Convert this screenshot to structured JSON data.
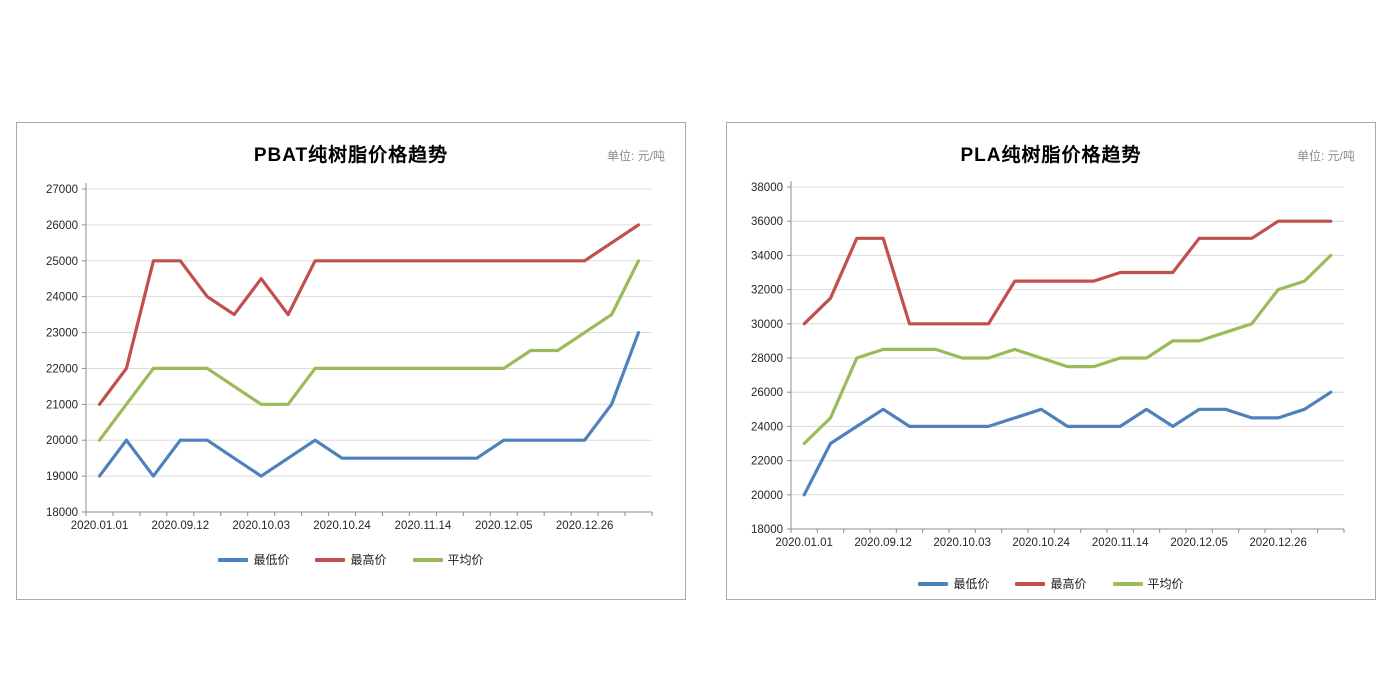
{
  "style": {
    "background": "#FFFFFF",
    "card_border_color": "#ABABAB",
    "axis_color": "#8C8C8C",
    "grid_color": "#DBDBDB",
    "tick_label_color": "#262626",
    "title_color": "#000000",
    "unit_label_color": "#8C8C8C",
    "series_colors": {
      "min": "#4F81BD",
      "max": "#C0504D",
      "avg": "#9BBB59"
    }
  },
  "chart_data": [
    {
      "type": "line",
      "title": "PBAT纯树脂价格趋势",
      "unit_label": "单位: 元/吨",
      "ylim": [
        18000,
        27000
      ],
      "ytick_step": 1000,
      "grid": true,
      "legend_position": "bottom",
      "categories": [
        "2020.01.01",
        "",
        "",
        "2020.09.12",
        "",
        "",
        "2020.10.03",
        "",
        "",
        "2020.10.24",
        "",
        "",
        "2020.11.14",
        "",
        "",
        "2020.12.05",
        "",
        "",
        "2020.12.26",
        "",
        ""
      ],
      "x_tick_labels": [
        "2020.01.01",
        "2020.09.12",
        "2020.10.03",
        "2020.10.24",
        "2020.11.14",
        "2020.12.05",
        "2020.12.26"
      ],
      "series": [
        {
          "name": "最低价",
          "color": "#4F81BD",
          "values": [
            19000,
            20000,
            19000,
            20000,
            20000,
            19500,
            19000,
            19500,
            20000,
            19500,
            19500,
            19500,
            19500,
            19500,
            19500,
            20000,
            20000,
            20000,
            20000,
            21000,
            23000
          ]
        },
        {
          "name": "最高价",
          "color": "#C0504D",
          "values": [
            21000,
            22000,
            25000,
            25000,
            24000,
            23500,
            24500,
            23500,
            25000,
            25000,
            25000,
            25000,
            25000,
            25000,
            25000,
            25000,
            25000,
            25000,
            25000,
            25500,
            26000
          ]
        },
        {
          "name": "平均价",
          "color": "#9BBB59",
          "values": [
            20000,
            21000,
            22000,
            22000,
            22000,
            21500,
            21000,
            21000,
            22000,
            22000,
            22000,
            22000,
            22000,
            22000,
            22000,
            22000,
            22500,
            22500,
            23000,
            23500,
            25000
          ]
        }
      ]
    },
    {
      "type": "line",
      "title": "PLA纯树脂价格趋势",
      "unit_label": "单位: 元/吨",
      "ylim": [
        18000,
        38000
      ],
      "ytick_step": 2000,
      "grid": true,
      "legend_position": "bottom",
      "categories": [
        "2020.01.01",
        "",
        "",
        "2020.09.12",
        "",
        "",
        "2020.10.03",
        "",
        "",
        "2020.10.24",
        "",
        "",
        "2020.11.14",
        "",
        "",
        "2020.12.05",
        "",
        "",
        "2020.12.26",
        "",
        ""
      ],
      "x_tick_labels": [
        "2020.01.01",
        "2020.09.12",
        "2020.10.03",
        "2020.10.24",
        "2020.11.14",
        "2020.12.05",
        "2020.12.26"
      ],
      "series": [
        {
          "name": "最低价",
          "color": "#4F81BD",
          "values": [
            20000,
            23000,
            24000,
            25000,
            24000,
            24000,
            24000,
            24000,
            24500,
            25000,
            24000,
            24000,
            24000,
            25000,
            24000,
            25000,
            25000,
            24500,
            24500,
            25000,
            26000
          ]
        },
        {
          "name": "最高价",
          "color": "#C0504D",
          "values": [
            30000,
            31500,
            35000,
            35000,
            30000,
            30000,
            30000,
            30000,
            32500,
            32500,
            32500,
            32500,
            33000,
            33000,
            33000,
            35000,
            35000,
            35000,
            36000,
            36000,
            36000
          ]
        },
        {
          "name": "平均价",
          "color": "#9BBB59",
          "values": [
            23000,
            24500,
            28000,
            28500,
            28500,
            28500,
            28000,
            28000,
            28500,
            28000,
            27500,
            27500,
            28000,
            28000,
            29000,
            29000,
            29500,
            30000,
            32000,
            32500,
            34000
          ]
        }
      ]
    }
  ]
}
